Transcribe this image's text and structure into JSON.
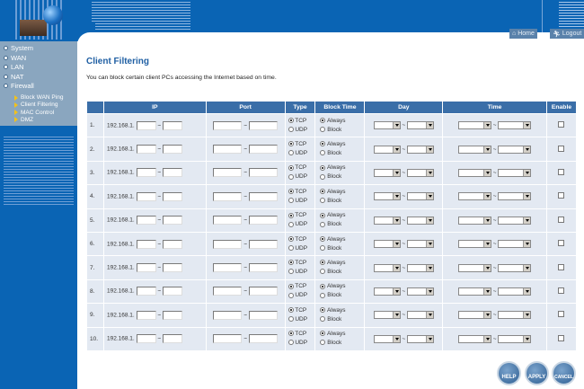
{
  "header": {
    "home_label": "Home",
    "logout_label": "Logout"
  },
  "sidebar": {
    "items": [
      {
        "label": "System"
      },
      {
        "label": "WAN"
      },
      {
        "label": "LAN"
      },
      {
        "label": "NAT"
      },
      {
        "label": "Firewall"
      }
    ],
    "subitems": [
      {
        "label": "Block WAN Ping"
      },
      {
        "label": "Client Filtering"
      },
      {
        "label": "MAC Control"
      },
      {
        "label": "DMZ"
      }
    ]
  },
  "page": {
    "title": "Client Filtering",
    "description": "You can block certain client PCs accessing the Internet based on time."
  },
  "table": {
    "headers": [
      "",
      "IP",
      "Port",
      "Type",
      "Block Time",
      "Day",
      "Time",
      "Enable"
    ],
    "ip_prefix": "192.168.1.",
    "tilde": "~",
    "type_options": [
      "TCP",
      "UDP"
    ],
    "block_options": [
      "Always",
      "Block"
    ],
    "rows": [
      "1.",
      "2.",
      "3.",
      "4.",
      "5.",
      "6.",
      "7.",
      "8.",
      "9.",
      "10."
    ]
  },
  "footer": {
    "help_label": "HELP",
    "apply_label": "APPLY",
    "cancel_label": "CANCEL"
  }
}
